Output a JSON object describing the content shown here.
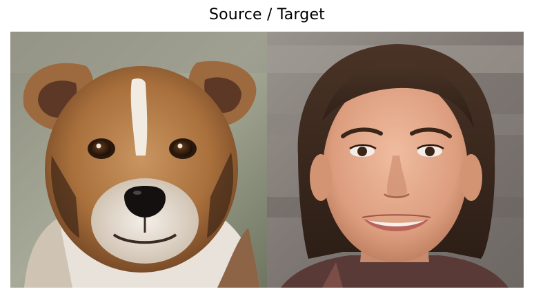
{
  "figure": {
    "title": "Source / Target",
    "panels": [
      {
        "subject": "dog-portrait"
      },
      {
        "subject": "woman-portrait"
      }
    ]
  },
  "colors": {
    "background": "#ffffff",
    "title_text": "#000000"
  }
}
